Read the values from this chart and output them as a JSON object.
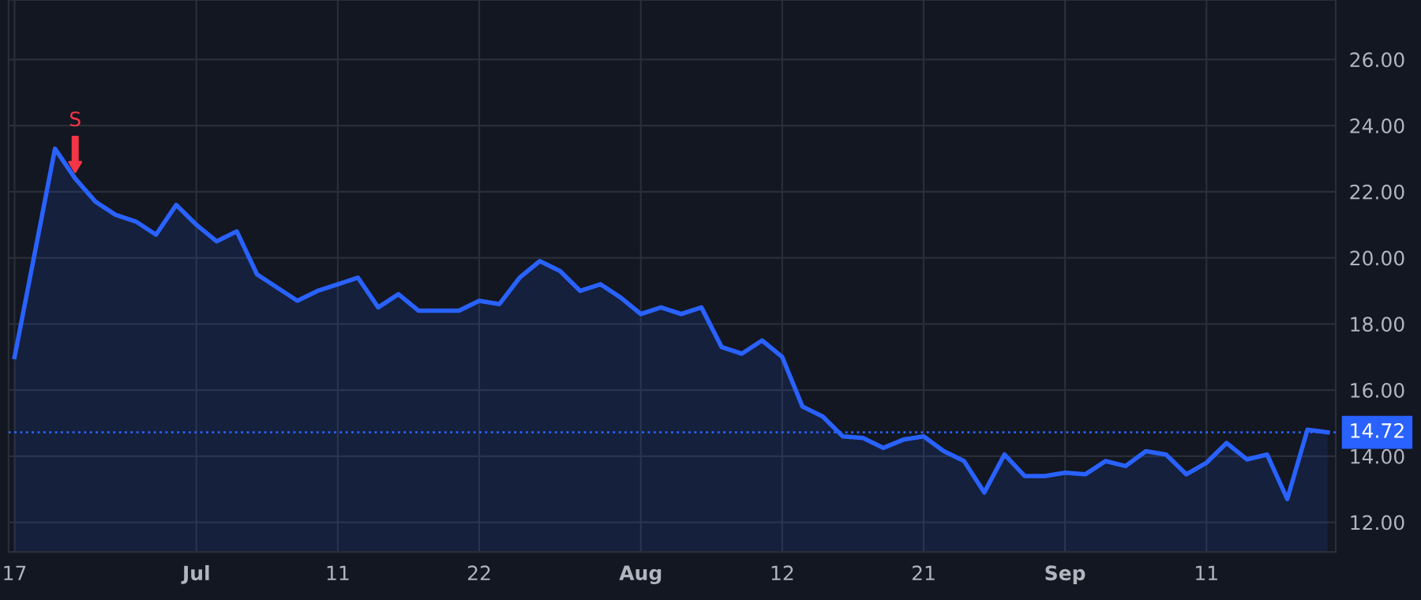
{
  "chart_data": {
    "type": "area",
    "categories": [
      "17",
      null,
      null,
      null,
      null,
      null,
      null,
      null,
      null,
      "Jul",
      null,
      null,
      null,
      null,
      null,
      null,
      "11",
      null,
      null,
      null,
      null,
      null,
      null,
      "22",
      null,
      null,
      null,
      null,
      null,
      null,
      null,
      "Aug",
      null,
      null,
      null,
      null,
      null,
      null,
      "12",
      null,
      null,
      null,
      null,
      null,
      null,
      "21",
      null,
      null,
      null,
      null,
      null,
      null,
      "Sep",
      null,
      null,
      null,
      null,
      null,
      null,
      "11",
      null,
      null,
      null,
      null,
      null,
      null
    ],
    "series": [
      {
        "color": "#2962ff",
        "values": [
          17.0,
          null,
          23.3,
          22.4,
          21.7,
          21.3,
          21.1,
          20.7,
          21.6,
          21.0,
          20.5,
          20.8,
          19.5,
          19.1,
          18.7,
          19.0,
          19.2,
          19.4,
          18.5,
          18.9,
          18.4,
          18.4,
          18.4,
          18.7,
          18.6,
          19.4,
          19.9,
          19.6,
          19.0,
          19.2,
          18.8,
          18.3,
          18.5,
          18.3,
          18.5,
          17.3,
          17.1,
          17.5,
          17.0,
          15.5,
          15.2,
          14.6,
          14.55,
          14.25,
          14.5,
          14.6,
          14.15,
          13.85,
          12.9,
          14.05,
          13.4,
          13.4,
          13.5,
          13.45,
          13.85,
          13.7,
          14.15,
          14.05,
          13.45,
          13.8,
          14.4,
          13.9,
          14.05,
          12.7,
          14.8,
          14.72
        ]
      }
    ],
    "ylim": [
      11.1,
      27.8
    ],
    "yticks": [
      {
        "value": 12,
        "label": "12.00"
      },
      {
        "value": 14,
        "label": "14.00"
      },
      {
        "value": 16,
        "label": "16.00"
      },
      {
        "value": 18,
        "label": "18.00"
      },
      {
        "value": 20,
        "label": "20.00"
      },
      {
        "value": 22,
        "label": "22.00"
      },
      {
        "value": 24,
        "label": "24.00"
      },
      {
        "value": 26,
        "label": "26.00"
      }
    ],
    "ref_lines": [
      {
        "axis": "y",
        "value": 14.72,
        "label": "14.72",
        "color": "#2962ff",
        "line_style": "dotted"
      }
    ],
    "annotations": [
      {
        "text": "S",
        "y": 22.4
      }
    ],
    "grid": true
  }
}
